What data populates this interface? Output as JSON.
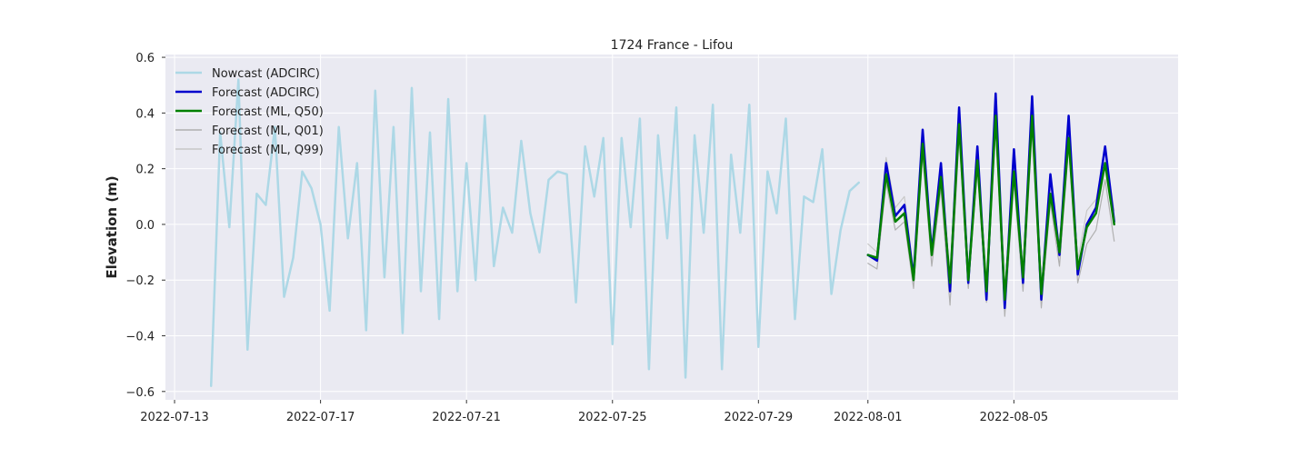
{
  "chart_data": {
    "type": "line",
    "title": "1724 France - Lifou",
    "xlabel": "",
    "ylabel": "Elevation (m)",
    "xlim": [
      "2022-07-12T18:00",
      "2022-08-09T12:00"
    ],
    "ylim": [
      -0.63,
      0.61
    ],
    "xticks": [
      "2022-07-13",
      "2022-07-17",
      "2022-07-21",
      "2022-07-25",
      "2022-07-29",
      "2022-08-01",
      "2022-08-05"
    ],
    "yticks": [
      0.6,
      0.4,
      0.2,
      0.0,
      -0.2,
      -0.4,
      -0.6
    ],
    "ytick_labels": [
      "0.6",
      "0.4",
      "0.2",
      "0.0",
      "−0.2",
      "−0.4",
      "−0.6"
    ],
    "grid": true,
    "legend_position": "top-left",
    "series": [
      {
        "name": "Nowcast (ADCIRC)",
        "color": "#add8e6",
        "x": [
          "2022-07-14T00:00",
          "2022-07-14T06:00",
          "2022-07-14T12:00",
          "2022-07-14T18:00",
          "2022-07-15T00:00",
          "2022-07-15T06:00",
          "2022-07-15T12:00",
          "2022-07-15T18:00",
          "2022-07-16T00:00",
          "2022-07-16T06:00",
          "2022-07-16T12:00",
          "2022-07-16T18:00",
          "2022-07-17T00:00",
          "2022-07-17T06:00",
          "2022-07-17T12:00",
          "2022-07-17T18:00",
          "2022-07-18T00:00",
          "2022-07-18T06:00",
          "2022-07-18T12:00",
          "2022-07-18T18:00",
          "2022-07-19T00:00",
          "2022-07-19T06:00",
          "2022-07-19T12:00",
          "2022-07-19T18:00",
          "2022-07-20T00:00",
          "2022-07-20T06:00",
          "2022-07-20T12:00",
          "2022-07-20T18:00",
          "2022-07-21T00:00",
          "2022-07-21T06:00",
          "2022-07-21T12:00",
          "2022-07-21T18:00",
          "2022-07-22T00:00",
          "2022-07-22T06:00",
          "2022-07-22T12:00",
          "2022-07-22T18:00",
          "2022-07-23T00:00",
          "2022-07-23T06:00",
          "2022-07-23T12:00",
          "2022-07-23T18:00",
          "2022-07-24T00:00",
          "2022-07-24T06:00",
          "2022-07-24T12:00",
          "2022-07-24T18:00",
          "2022-07-25T00:00",
          "2022-07-25T06:00",
          "2022-07-25T12:00",
          "2022-07-25T18:00",
          "2022-07-26T00:00",
          "2022-07-26T06:00",
          "2022-07-26T12:00",
          "2022-07-26T18:00",
          "2022-07-27T00:00",
          "2022-07-27T06:00",
          "2022-07-27T12:00",
          "2022-07-27T18:00",
          "2022-07-28T00:00",
          "2022-07-28T06:00",
          "2022-07-28T12:00",
          "2022-07-28T18:00",
          "2022-07-29T00:00",
          "2022-07-29T06:00",
          "2022-07-29T12:00",
          "2022-07-29T18:00",
          "2022-07-30T00:00",
          "2022-07-30T06:00",
          "2022-07-30T12:00",
          "2022-07-30T18:00",
          "2022-07-31T00:00",
          "2022-07-31T06:00",
          "2022-07-31T12:00",
          "2022-07-31T18:00"
        ],
        "y": [
          -0.58,
          0.33,
          -0.01,
          0.52,
          -0.45,
          0.11,
          0.07,
          0.35,
          -0.26,
          -0.12,
          0.19,
          0.13,
          0.0,
          -0.31,
          0.35,
          -0.05,
          0.22,
          -0.38,
          0.48,
          -0.19,
          0.35,
          -0.39,
          0.49,
          -0.24,
          0.33,
          -0.34,
          0.45,
          -0.24,
          0.22,
          -0.2,
          0.39,
          -0.15,
          0.06,
          -0.03,
          0.3,
          0.04,
          -0.1,
          0.16,
          0.19,
          0.18,
          -0.28,
          0.28,
          0.1,
          0.31,
          -0.43,
          0.31,
          -0.01,
          0.38,
          -0.52,
          0.32,
          -0.05,
          0.42,
          -0.55,
          0.32,
          -0.03,
          0.43,
          -0.52,
          0.25,
          -0.03,
          0.43,
          -0.44,
          0.19,
          0.04,
          0.38,
          -0.34,
          0.1,
          0.08,
          0.27,
          -0.25,
          -0.02,
          0.12,
          0.15
        ]
      },
      {
        "name": "Forecast (ADCIRC)",
        "color": "#0000cd",
        "x": [
          "2022-08-01T00:00",
          "2022-08-01T06:00",
          "2022-08-01T12:00",
          "2022-08-01T18:00",
          "2022-08-02T00:00",
          "2022-08-02T06:00",
          "2022-08-02T12:00",
          "2022-08-02T18:00",
          "2022-08-03T00:00",
          "2022-08-03T06:00",
          "2022-08-03T12:00",
          "2022-08-03T18:00",
          "2022-08-04T00:00",
          "2022-08-04T06:00",
          "2022-08-04T12:00",
          "2022-08-04T18:00",
          "2022-08-05T00:00",
          "2022-08-05T06:00",
          "2022-08-05T12:00",
          "2022-08-05T18:00",
          "2022-08-06T00:00",
          "2022-08-06T06:00",
          "2022-08-06T12:00",
          "2022-08-06T18:00",
          "2022-08-07T00:00",
          "2022-08-07T06:00",
          "2022-08-07T12:00",
          "2022-08-07T18:00"
        ],
        "y": [
          -0.11,
          -0.13,
          0.22,
          0.03,
          0.07,
          -0.19,
          0.34,
          -0.1,
          0.22,
          -0.24,
          0.42,
          -0.21,
          0.28,
          -0.27,
          0.47,
          -0.3,
          0.27,
          -0.21,
          0.46,
          -0.27,
          0.18,
          -0.11,
          0.39,
          -0.18,
          0.0,
          0.06,
          0.28,
          0.01
        ]
      },
      {
        "name": "Forecast (ML, Q50)",
        "color": "#008000",
        "x": [
          "2022-08-01T00:00",
          "2022-08-01T06:00",
          "2022-08-01T12:00",
          "2022-08-01T18:00",
          "2022-08-02T00:00",
          "2022-08-02T06:00",
          "2022-08-02T12:00",
          "2022-08-02T18:00",
          "2022-08-03T00:00",
          "2022-08-03T06:00",
          "2022-08-03T12:00",
          "2022-08-03T18:00",
          "2022-08-04T00:00",
          "2022-08-04T06:00",
          "2022-08-04T12:00",
          "2022-08-04T18:00",
          "2022-08-05T00:00",
          "2022-08-05T06:00",
          "2022-08-05T12:00",
          "2022-08-05T18:00",
          "2022-08-06T00:00",
          "2022-08-06T06:00",
          "2022-08-06T12:00",
          "2022-08-06T18:00",
          "2022-08-07T00:00",
          "2022-08-07T06:00",
          "2022-08-07T12:00",
          "2022-08-07T18:00"
        ],
        "y": [
          -0.11,
          -0.12,
          0.18,
          0.01,
          0.04,
          -0.2,
          0.29,
          -0.11,
          0.17,
          -0.21,
          0.36,
          -0.2,
          0.23,
          -0.24,
          0.39,
          -0.27,
          0.19,
          -0.19,
          0.39,
          -0.25,
          0.11,
          -0.1,
          0.31,
          -0.16,
          -0.01,
          0.04,
          0.22,
          0.0
        ]
      },
      {
        "name": "Forecast (ML, Q01)",
        "color": "#b0b0b0",
        "x": [
          "2022-08-01T00:00",
          "2022-08-01T06:00",
          "2022-08-01T12:00",
          "2022-08-01T18:00",
          "2022-08-02T00:00",
          "2022-08-02T06:00",
          "2022-08-02T12:00",
          "2022-08-02T18:00",
          "2022-08-03T00:00",
          "2022-08-03T06:00",
          "2022-08-03T12:00",
          "2022-08-03T18:00",
          "2022-08-04T00:00",
          "2022-08-04T06:00",
          "2022-08-04T12:00",
          "2022-08-04T18:00",
          "2022-08-05T00:00",
          "2022-08-05T06:00",
          "2022-08-05T12:00",
          "2022-08-05T18:00",
          "2022-08-06T00:00",
          "2022-08-06T06:00",
          "2022-08-06T12:00",
          "2022-08-06T18:00",
          "2022-08-07T00:00",
          "2022-08-07T06:00",
          "2022-08-07T12:00",
          "2022-08-07T18:00"
        ],
        "y": [
          -0.14,
          -0.16,
          0.15,
          -0.02,
          0.01,
          -0.23,
          0.25,
          -0.15,
          0.13,
          -0.29,
          0.32,
          -0.23,
          0.2,
          -0.28,
          0.36,
          -0.33,
          0.15,
          -0.24,
          0.34,
          -0.3,
          0.08,
          -0.15,
          0.28,
          -0.21,
          -0.07,
          -0.02,
          0.16,
          -0.06
        ]
      },
      {
        "name": "Forecast (ML, Q99)",
        "color": "#c8c8c8",
        "x": [
          "2022-08-01T00:00",
          "2022-08-01T06:00",
          "2022-08-01T12:00",
          "2022-08-01T18:00",
          "2022-08-02T00:00",
          "2022-08-02T06:00",
          "2022-08-02T12:00",
          "2022-08-02T18:00",
          "2022-08-03T00:00",
          "2022-08-03T06:00",
          "2022-08-03T12:00",
          "2022-08-03T18:00",
          "2022-08-04T00:00",
          "2022-08-04T06:00",
          "2022-08-04T12:00",
          "2022-08-04T18:00",
          "2022-08-05T00:00",
          "2022-08-05T06:00",
          "2022-08-05T12:00",
          "2022-08-05T18:00",
          "2022-08-06T00:00",
          "2022-08-06T06:00",
          "2022-08-06T12:00",
          "2022-08-06T18:00",
          "2022-08-07T00:00",
          "2022-08-07T06:00",
          "2022-08-07T12:00",
          "2022-08-07T18:00"
        ],
        "y": [
          -0.07,
          -0.1,
          0.24,
          0.06,
          0.1,
          -0.17,
          0.32,
          -0.08,
          0.21,
          -0.18,
          0.38,
          -0.16,
          0.25,
          -0.22,
          0.42,
          -0.24,
          0.22,
          -0.16,
          0.42,
          -0.22,
          0.14,
          -0.07,
          0.34,
          -0.13,
          0.05,
          0.09,
          0.26,
          0.05
        ]
      }
    ]
  }
}
